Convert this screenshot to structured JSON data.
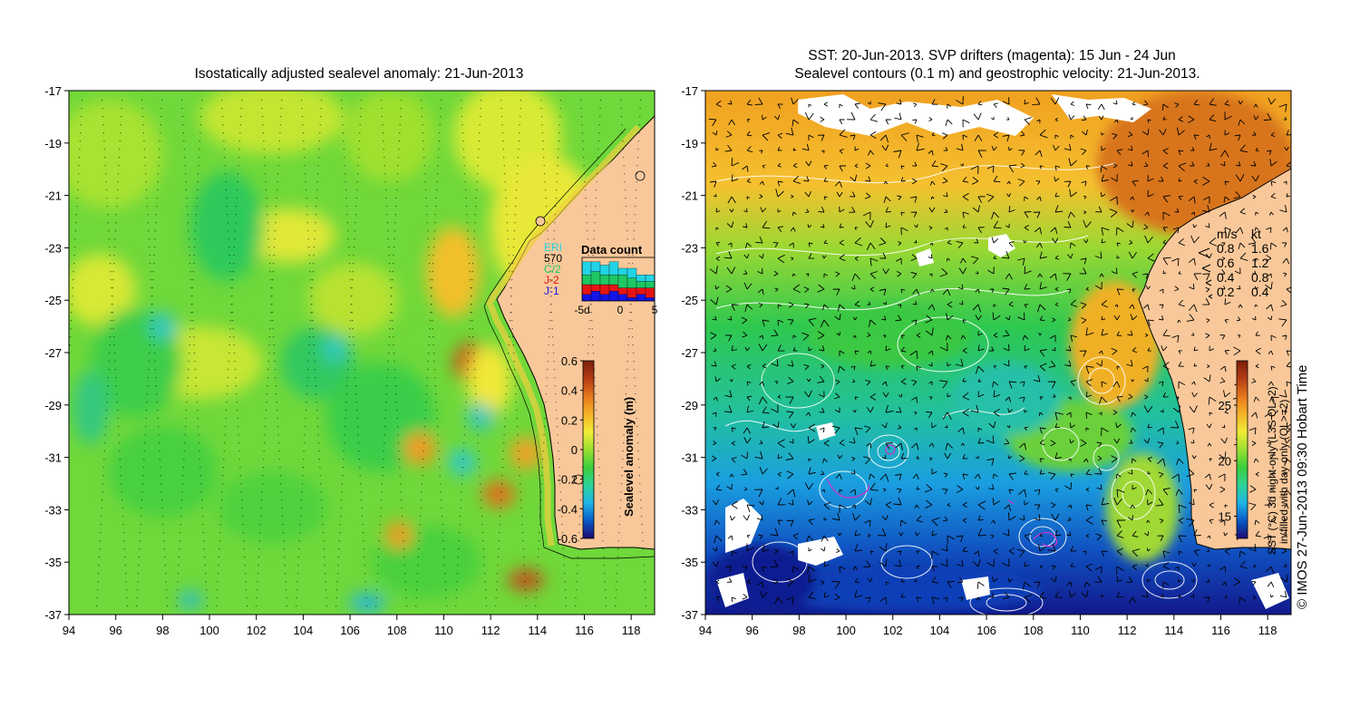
{
  "left_panel": {
    "title": "Isostatically adjusted sealevel anomaly: 21-Jun-2013",
    "colorbar": {
      "label": "Sealevel anomaly (m)",
      "ticks": [
        "0.6",
        "0.4",
        "0.2",
        "0",
        "-0.2",
        "-0.4",
        "-0.6"
      ],
      "colors": [
        "#1a0a6e",
        "#0a5ac8",
        "#1eb4e6",
        "#2dd296",
        "#3ccd3c",
        "#9be132",
        "#f0eb37",
        "#f5b428",
        "#e6781e",
        "#b43c14",
        "#7a1e0a"
      ]
    },
    "data_count": {
      "title": "Data count",
      "missions": [
        "ERI",
        "570",
        "C/2",
        "J-2",
        "J-1"
      ],
      "mission_colors": [
        "#22d3e6",
        "#000000",
        "#1ec864",
        "#e61414",
        "#1414e6"
      ],
      "x_ticks": [
        "-5d",
        "0",
        "5"
      ],
      "bars": [
        {
          "J-1": 2,
          "J-2": 3,
          "C/2": 3,
          "570": 0,
          "ERI": 4
        },
        {
          "J-1": 3,
          "J-2": 2,
          "C/2": 4,
          "570": 0,
          "ERI": 3
        },
        {
          "J-1": 2,
          "J-2": 3,
          "C/2": 3,
          "570": 0,
          "ERI": 3
        },
        {
          "J-1": 3,
          "J-2": 2,
          "C/2": 3,
          "570": 0,
          "ERI": 4
        },
        {
          "J-1": 2,
          "J-2": 2,
          "C/2": 4,
          "570": 0,
          "ERI": 2
        },
        {
          "J-1": 1,
          "J-2": 3,
          "C/2": 3,
          "570": 0,
          "ERI": 3
        },
        {
          "J-1": 2,
          "J-2": 2,
          "C/2": 2,
          "570": 0,
          "ERI": 2
        },
        {
          "J-1": 1,
          "J-2": 3,
          "C/2": 2,
          "570": 0,
          "ERI": 2
        }
      ]
    }
  },
  "right_panel": {
    "title_line1": "SST: 20-Jun-2013. SVP drifters (magenta): 15 Jun - 24 Jun",
    "title_line2": "Sealevel contours (0.1 m) and geostrophic velocity: 21-Jun-2013.",
    "colorbar": {
      "label_line1": "SST (°C)  3d night-only (L3S QL>2)",
      "label_line2": "in-filled with day-only (QL>=2)",
      "ticks": [
        "25",
        "20",
        "15"
      ],
      "colors": [
        "#1a0a6e",
        "#0a5ac8",
        "#1eb4e6",
        "#2dd296",
        "#3ccd3c",
        "#9be132",
        "#f0eb37",
        "#f5b428",
        "#e6781e",
        "#b43c14",
        "#7a1e0a"
      ]
    },
    "speed_legend": {
      "header_ms": "m/s",
      "header_kt": "kt",
      "rows": [
        {
          "ms": "0.8",
          "kt": "1.6"
        },
        {
          "ms": "0.6",
          "kt": "1.2"
        },
        {
          "ms": "0.4",
          "kt": "0.8"
        },
        {
          "ms": "0.2",
          "kt": "0.4"
        }
      ]
    }
  },
  "axes": {
    "lat_ticks": [
      "-17",
      "-19",
      "-21",
      "-23",
      "-25",
      "-27",
      "-29",
      "-31",
      "-33",
      "-35",
      "-37"
    ],
    "lon_ticks": [
      "94",
      "96",
      "98",
      "100",
      "102",
      "104",
      "106",
      "108",
      "110",
      "112",
      "114",
      "116",
      "118"
    ],
    "lat_range": [
      -37,
      -17
    ],
    "lon_range": [
      94,
      119
    ]
  },
  "credit": "© IMOS 27-Jun-2013 09:30 Hobart Time",
  "colors": {
    "land": "#f9c89a",
    "contour": "#ffffff",
    "drifter": "#cc33cc",
    "coast": "#000000"
  }
}
